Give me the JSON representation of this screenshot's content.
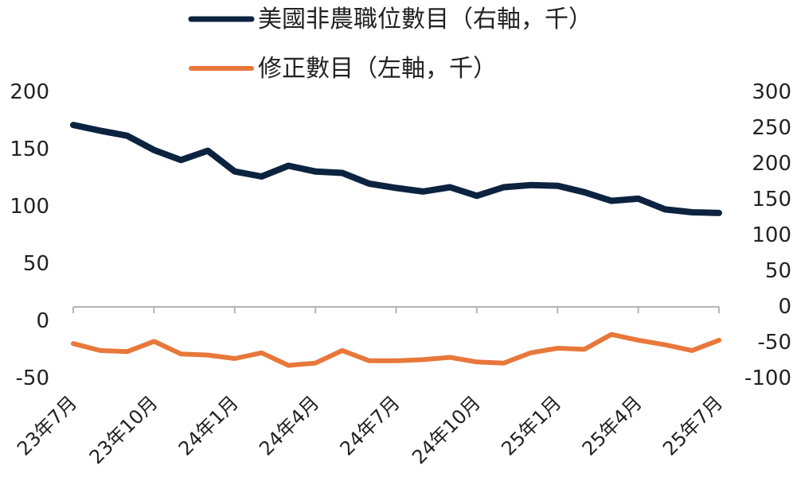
{
  "chart_data": {
    "type": "line",
    "categories": [
      "23年7月",
      "23年8月",
      "23年9月",
      "23年10月",
      "23年11月",
      "23年12月",
      "24年1月",
      "24年2月",
      "24年3月",
      "24年4月",
      "24年5月",
      "24年6月",
      "24年7月",
      "24年8月",
      "24年9月",
      "24年10月",
      "24年11月",
      "24年12月",
      "25年1月",
      "25年2月",
      "25年3月",
      "25年4月",
      "25年5月",
      "25年6月",
      "25年7月"
    ],
    "xtick_labels": [
      "23年7月",
      "23年10月",
      "24年1月",
      "24年4月",
      "24年7月",
      "24年10月",
      "25年1月",
      "25年4月",
      "25年7月"
    ],
    "series": [
      {
        "name": "美國非農職位數目（右軸，千）",
        "axis": "right",
        "color": "#0c2340",
        "values": [
          252,
          244,
          237,
          217,
          203,
          216,
          187,
          180,
          195,
          187,
          185,
          170,
          164,
          159,
          165,
          153,
          165,
          168,
          167,
          158,
          146,
          149,
          134,
          130,
          129
        ]
      },
      {
        "name": "修正數目（左軸，千）",
        "axis": "left",
        "color": "#e8773a",
        "values": [
          -21,
          -27,
          -28,
          -19,
          -30,
          -31,
          -34,
          -29,
          -40,
          -38,
          -27,
          -36,
          -36,
          -35,
          -33,
          -37,
          -38,
          -29,
          -25,
          -26,
          -13,
          -18,
          -22,
          -27,
          -18
        ]
      }
    ],
    "y_left": {
      "min": -50,
      "max": 200,
      "ticks": [
        "200",
        "150",
        "100",
        "50",
        "0",
        "-50"
      ]
    },
    "y_right": {
      "min": -100,
      "max": 300,
      "ticks": [
        "300",
        "250",
        "200",
        "150",
        "100",
        "50",
        "0",
        "-50",
        "-100"
      ]
    },
    "legend_position": "top-center",
    "grid": false
  }
}
